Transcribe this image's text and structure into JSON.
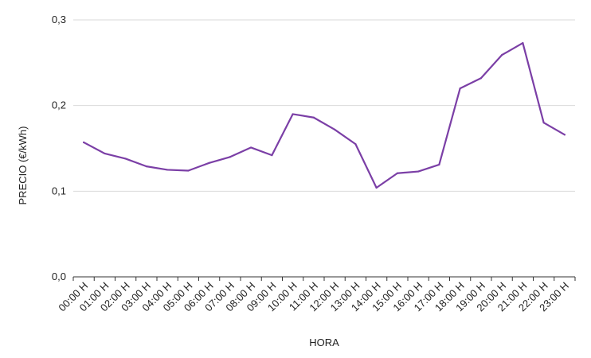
{
  "chart_data": {
    "type": "line",
    "title": "",
    "xlabel": "HORA",
    "ylabel": "PRECIO (€/kWh)",
    "ylim": [
      0,
      0.3
    ],
    "yticks": [
      "0,0",
      "0,1",
      "0,2",
      "0,3"
    ],
    "grid": true,
    "legend": "none",
    "colors": {
      "line": "#7b3fa6"
    },
    "categories": [
      "00:00 H",
      "01:00 H",
      "02:00 H",
      "03:00 H",
      "04:00 H",
      "05:00 H",
      "06:00 H",
      "07:00 H",
      "08:00 H",
      "09:00 H",
      "10:00 H",
      "11:00 H",
      "12:00 H",
      "13:00 H",
      "14:00 H",
      "15:00 H",
      "16:00 H",
      "17:00 H",
      "18:00 H",
      "19:00 H",
      "20:00 H",
      "21:00 H",
      "22:00 H",
      "23:00 H"
    ],
    "series": [
      {
        "values": [
          0.157,
          0.144,
          0.138,
          0.129,
          0.125,
          0.124,
          0.133,
          0.14,
          0.151,
          0.142,
          0.19,
          0.186,
          0.172,
          0.155,
          0.104,
          0.121,
          0.123,
          0.131,
          0.22,
          0.232,
          0.259,
          0.273,
          0.18,
          0.166
        ]
      }
    ]
  }
}
